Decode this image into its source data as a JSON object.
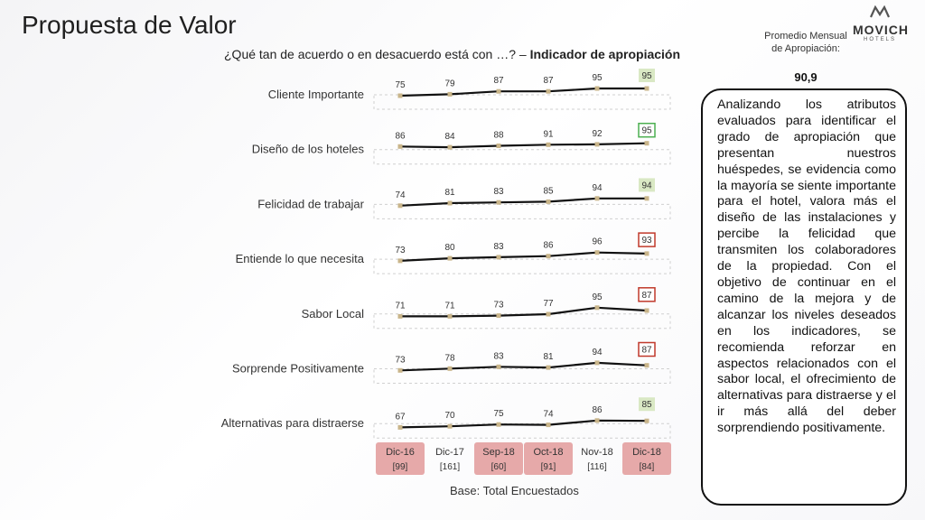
{
  "header": {
    "title": "Propuesta de Valor",
    "subtitle_prefix": "¿Qué tan de acuerdo o en desacuerdo está con …? – ",
    "subtitle_bold": "Indicador de apropiación"
  },
  "logo": {
    "brand": "MOVICH",
    "sub": "HOTELS"
  },
  "promedio": {
    "label": "Promedio Mensual de Apropiación:",
    "value": "90,9"
  },
  "analysis_text": "Analizando los atributos evaluados para identificar el grado de apropiación que presentan nuestros huéspedes, se evidencia como la mayoría se siente importante para el hotel, valora más el diseño de las instalaciones y percibe la felicidad que transmiten los colaboradores de la propiedad. Con el objetivo de continuar en el camino de la mejora y de alcanzar los niveles deseados en los indicadores, se recomienda reforzar en aspectos relacionados con el sabor local, el ofrecimiento de alternativas para distraerse y el ir más allá del deber sorprendiendo positivamente.",
  "base_label": "Base: Total Encuestados",
  "colors": {
    "line": "#111111",
    "marker": "#c9b58a",
    "highlight_green_fill": "#d9e8c4",
    "highlight_red_border": "#c0392b",
    "period_pink": "#e6a9a9",
    "dashed_box": "#d0d0d0"
  },
  "chart_data": {
    "type": "line",
    "periods": [
      {
        "label": "Dic-16",
        "n": "[99]",
        "highlight": true
      },
      {
        "label": "Dic-17",
        "n": "[161]",
        "highlight": false
      },
      {
        "label": "Sep-18",
        "n": "[60]",
        "highlight": true
      },
      {
        "label": "Oct-18",
        "n": "[91]",
        "highlight": true
      },
      {
        "label": "Nov-18",
        "n": "[116]",
        "highlight": false
      },
      {
        "label": "Dic-18",
        "n": "[84]",
        "highlight": true
      }
    ],
    "series": [
      {
        "name": "Cliente Importante",
        "values": [
          75,
          79,
          87,
          87,
          95,
          95
        ],
        "last_style": "green-fill"
      },
      {
        "name": "Diseño de los hoteles",
        "values": [
          86,
          84,
          88,
          91,
          92,
          95
        ],
        "last_style": "green-border"
      },
      {
        "name": "Felicidad de trabajar",
        "values": [
          74,
          81,
          83,
          85,
          94,
          94
        ],
        "last_style": "green-fill"
      },
      {
        "name": "Entiende lo que necesita",
        "values": [
          73,
          80,
          83,
          86,
          96,
          93
        ],
        "last_style": "red-border"
      },
      {
        "name": "Sabor Local",
        "values": [
          71,
          71,
          73,
          77,
          95,
          87
        ],
        "last_style": "red-border"
      },
      {
        "name": "Sorprende Positivamente",
        "values": [
          73,
          78,
          83,
          81,
          94,
          87
        ],
        "last_style": "red-border"
      },
      {
        "name": "Alternativas para distraerse",
        "values": [
          67,
          70,
          75,
          74,
          86,
          85
        ],
        "last_style": "green-fill"
      }
    ]
  }
}
